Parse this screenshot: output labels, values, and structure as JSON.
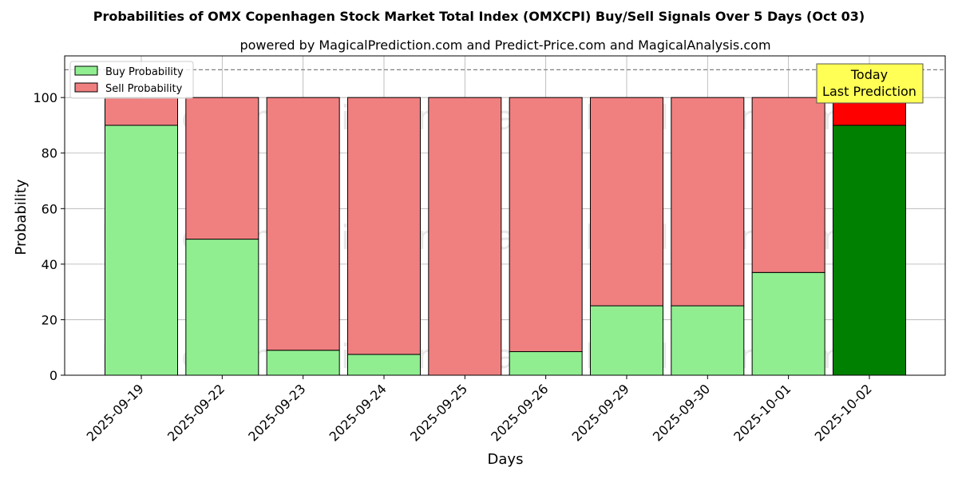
{
  "chart_data": {
    "type": "bar",
    "title": "Probabilities of OMX Copenhagen Stock Market Total Index (OMXCPI) Buy/Sell Signals Over 5 Days (Oct 03)",
    "subtitle": "powered by MagicalPrediction.com and Predict-Price.com and MagicalAnalysis.com",
    "xlabel": "Days",
    "ylabel": "Probability",
    "ylim": [
      0,
      115
    ],
    "yticks": [
      0,
      20,
      40,
      60,
      80,
      100
    ],
    "grid": true,
    "stacked": true,
    "legend_position": "top-left",
    "categories": [
      "2025-09-19",
      "2025-09-22",
      "2025-09-23",
      "2025-09-24",
      "2025-09-25",
      "2025-09-26",
      "2025-09-29",
      "2025-09-30",
      "2025-10-01",
      "2025-10-02"
    ],
    "series": [
      {
        "name": "Buy Probability",
        "values": [
          90,
          49,
          9,
          7.5,
          0,
          8.5,
          25,
          25,
          37,
          90
        ],
        "color": "#90ee90"
      },
      {
        "name": "Sell Probability",
        "values": [
          10,
          51,
          91,
          92.5,
          100,
          91.5,
          75,
          75,
          63,
          10
        ],
        "color": "#f08080"
      }
    ],
    "highlight": {
      "index": 9,
      "buy_color": "#008000",
      "sell_color": "#ff0000"
    },
    "reference_line": {
      "y": 110,
      "style": "dashed",
      "color": "#808080"
    },
    "annotation": {
      "lines": [
        "Today",
        "Last Prediction"
      ],
      "background": "#ffff55"
    },
    "watermarks": [
      "MagicalAnalysis.com",
      "MagicalPrediction.com"
    ]
  }
}
